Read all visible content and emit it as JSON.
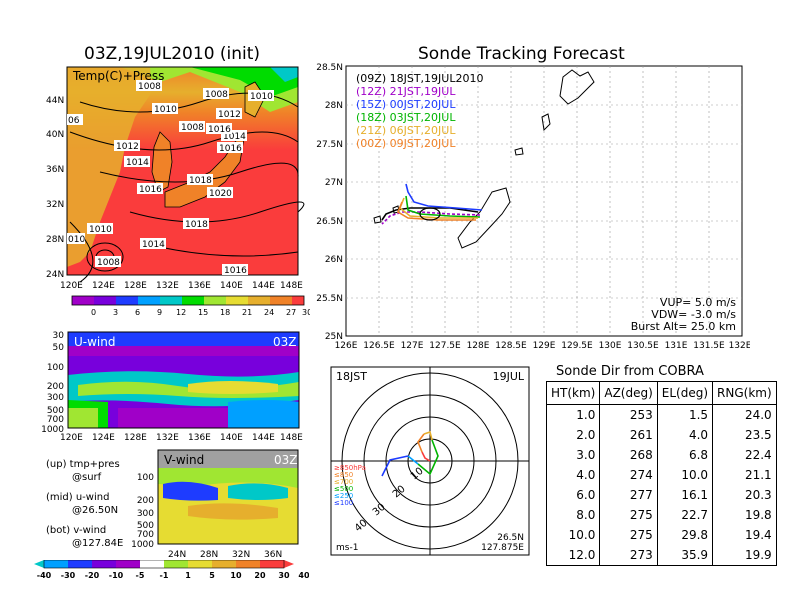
{
  "left_title": "03Z,19JUL2010 (init)",
  "right_title": "Sonde Tracking Forecast",
  "map_panel": {
    "label": "Temp(C)+Press",
    "lon_ticks": [
      "120E",
      "124E",
      "128E",
      "132E",
      "136E",
      "140E",
      "144E",
      "148E"
    ],
    "lat_ticks": [
      "44N",
      "40N",
      "36N",
      "32N",
      "28N",
      "24N"
    ],
    "pressure_labels": [
      "1008",
      "1008",
      "1010",
      "1010",
      "1012",
      "1014",
      "1016",
      "1014",
      "1016",
      "1018",
      "1020",
      "1018",
      "1014",
      "1016",
      "1010",
      "010",
      "1008",
      "1016",
      "06",
      "1012",
      "1008"
    ],
    "colorbar_labels": [
      "0",
      "3",
      "6",
      "9",
      "12",
      "15",
      "18",
      "21",
      "24",
      "27",
      "30"
    ],
    "colorbar_colors": [
      "#a000c8",
      "#7800dc",
      "#1e3cff",
      "#00a0ff",
      "#00c8c8",
      "#00dc00",
      "#a0e632",
      "#e6dc32",
      "#e6af2d",
      "#f08228",
      "#fa3c3c"
    ]
  },
  "uwind_panel": {
    "label": "U-wind",
    "time": "03Z",
    "p_ticks": [
      "30",
      "50",
      "100",
      "200",
      "300",
      "500",
      "700",
      "1000"
    ],
    "lon_ticks": [
      "120E",
      "124E",
      "128E",
      "132E",
      "136E",
      "140E",
      "144E",
      "148E"
    ]
  },
  "vwind_panel": {
    "label": "V-wind",
    "time": "03Z",
    "p_ticks": [
      "100",
      "200",
      "300",
      "500",
      "700",
      "1000"
    ],
    "lat_ticks": [
      "24N",
      "28N",
      "32N",
      "36N"
    ]
  },
  "legend_notes": [
    {
      "top": "(up) tmp+pres",
      "bot": "@surf"
    },
    {
      "top": "(mid) u-wind",
      "bot": "@26.50N"
    },
    {
      "top": "(bot) v-wind",
      "bot": "@127.84E"
    }
  ],
  "wind_colorbar": {
    "labels": [
      "-40",
      "-30",
      "-20",
      "-10",
      "-5",
      "-1",
      "1",
      "5",
      "10",
      "20",
      "30",
      "40"
    ],
    "colors": [
      "#00c8c8",
      "#00a0ff",
      "#1e3cff",
      "#7800dc",
      "#a000c8",
      "#ffffff",
      "#a0e632",
      "#e6dc32",
      "#e6af2d",
      "#f08228",
      "#fa3c3c"
    ]
  },
  "track_panel": {
    "lon_ticks": [
      "126E",
      "126.5E",
      "127E",
      "127.5E",
      "128E",
      "128.5E",
      "129E",
      "129.5E",
      "130E",
      "130.5E",
      "131E",
      "131.5E",
      "132E"
    ],
    "lat_ticks": [
      "28.5N",
      "28N",
      "27.5N",
      "27N",
      "26.5N",
      "26N",
      "25.5N",
      "25N"
    ],
    "runs": [
      {
        "label": "(09Z)  18JST,19JUL2010",
        "color": "#000000"
      },
      {
        "label": "(12Z)  21JST,19JUL",
        "color": "#a000c8"
      },
      {
        "label": "(15Z)  00JST,20JUL",
        "color": "#1e3cff"
      },
      {
        "label": "(18Z)  03JST,20JUL",
        "color": "#00b400"
      },
      {
        "label": "(21Z)  06JST,20JUL",
        "color": "#e6af2d"
      },
      {
        "label": "(00Z)  09JST,20JUL",
        "color": "#f08228"
      }
    ],
    "vup": "VUP=  5.0  m/s",
    "vdw": "VDW=  -3.0  m/s",
    "burst": "Burst Alt=  25.0  km"
  },
  "polar_panel": {
    "time_label": "18JST",
    "date_label": "19JUL",
    "legend": [
      {
        "label": "≥850hPa",
        "color": "#fa3c3c"
      },
      {
        "label": "≤850",
        "color": "#f08228"
      },
      {
        "label": "≤700",
        "color": "#e6af2d"
      },
      {
        "label": "≤500",
        "color": "#00b400"
      },
      {
        "label": "≤250",
        "color": "#00a0ff"
      },
      {
        "label": "≤100",
        "color": "#1e3cff"
      }
    ],
    "ring_labels": [
      "10",
      "20",
      "30",
      "40"
    ],
    "unit": "ms-1",
    "pos_lat": "26.5N",
    "pos_lon": "127.875E"
  },
  "sonde_table": {
    "title": "Sonde Dir from COBRA",
    "headers": [
      "HT(km)",
      "AZ(deg)",
      "EL(deg)",
      "RNG(km)"
    ],
    "rows": [
      [
        "1.0",
        "253",
        "1.5",
        "24.0"
      ],
      [
        "2.0",
        "261",
        "4.0",
        "23.5"
      ],
      [
        "3.0",
        "268",
        "6.8",
        "22.4"
      ],
      [
        "4.0",
        "274",
        "10.0",
        "21.1"
      ],
      [
        "6.0",
        "277",
        "16.1",
        "20.3"
      ],
      [
        "8.0",
        "275",
        "22.7",
        "19.8"
      ],
      [
        "10.0",
        "275",
        "29.8",
        "19.4"
      ],
      [
        "12.0",
        "273",
        "35.9",
        "19.9"
      ]
    ]
  }
}
